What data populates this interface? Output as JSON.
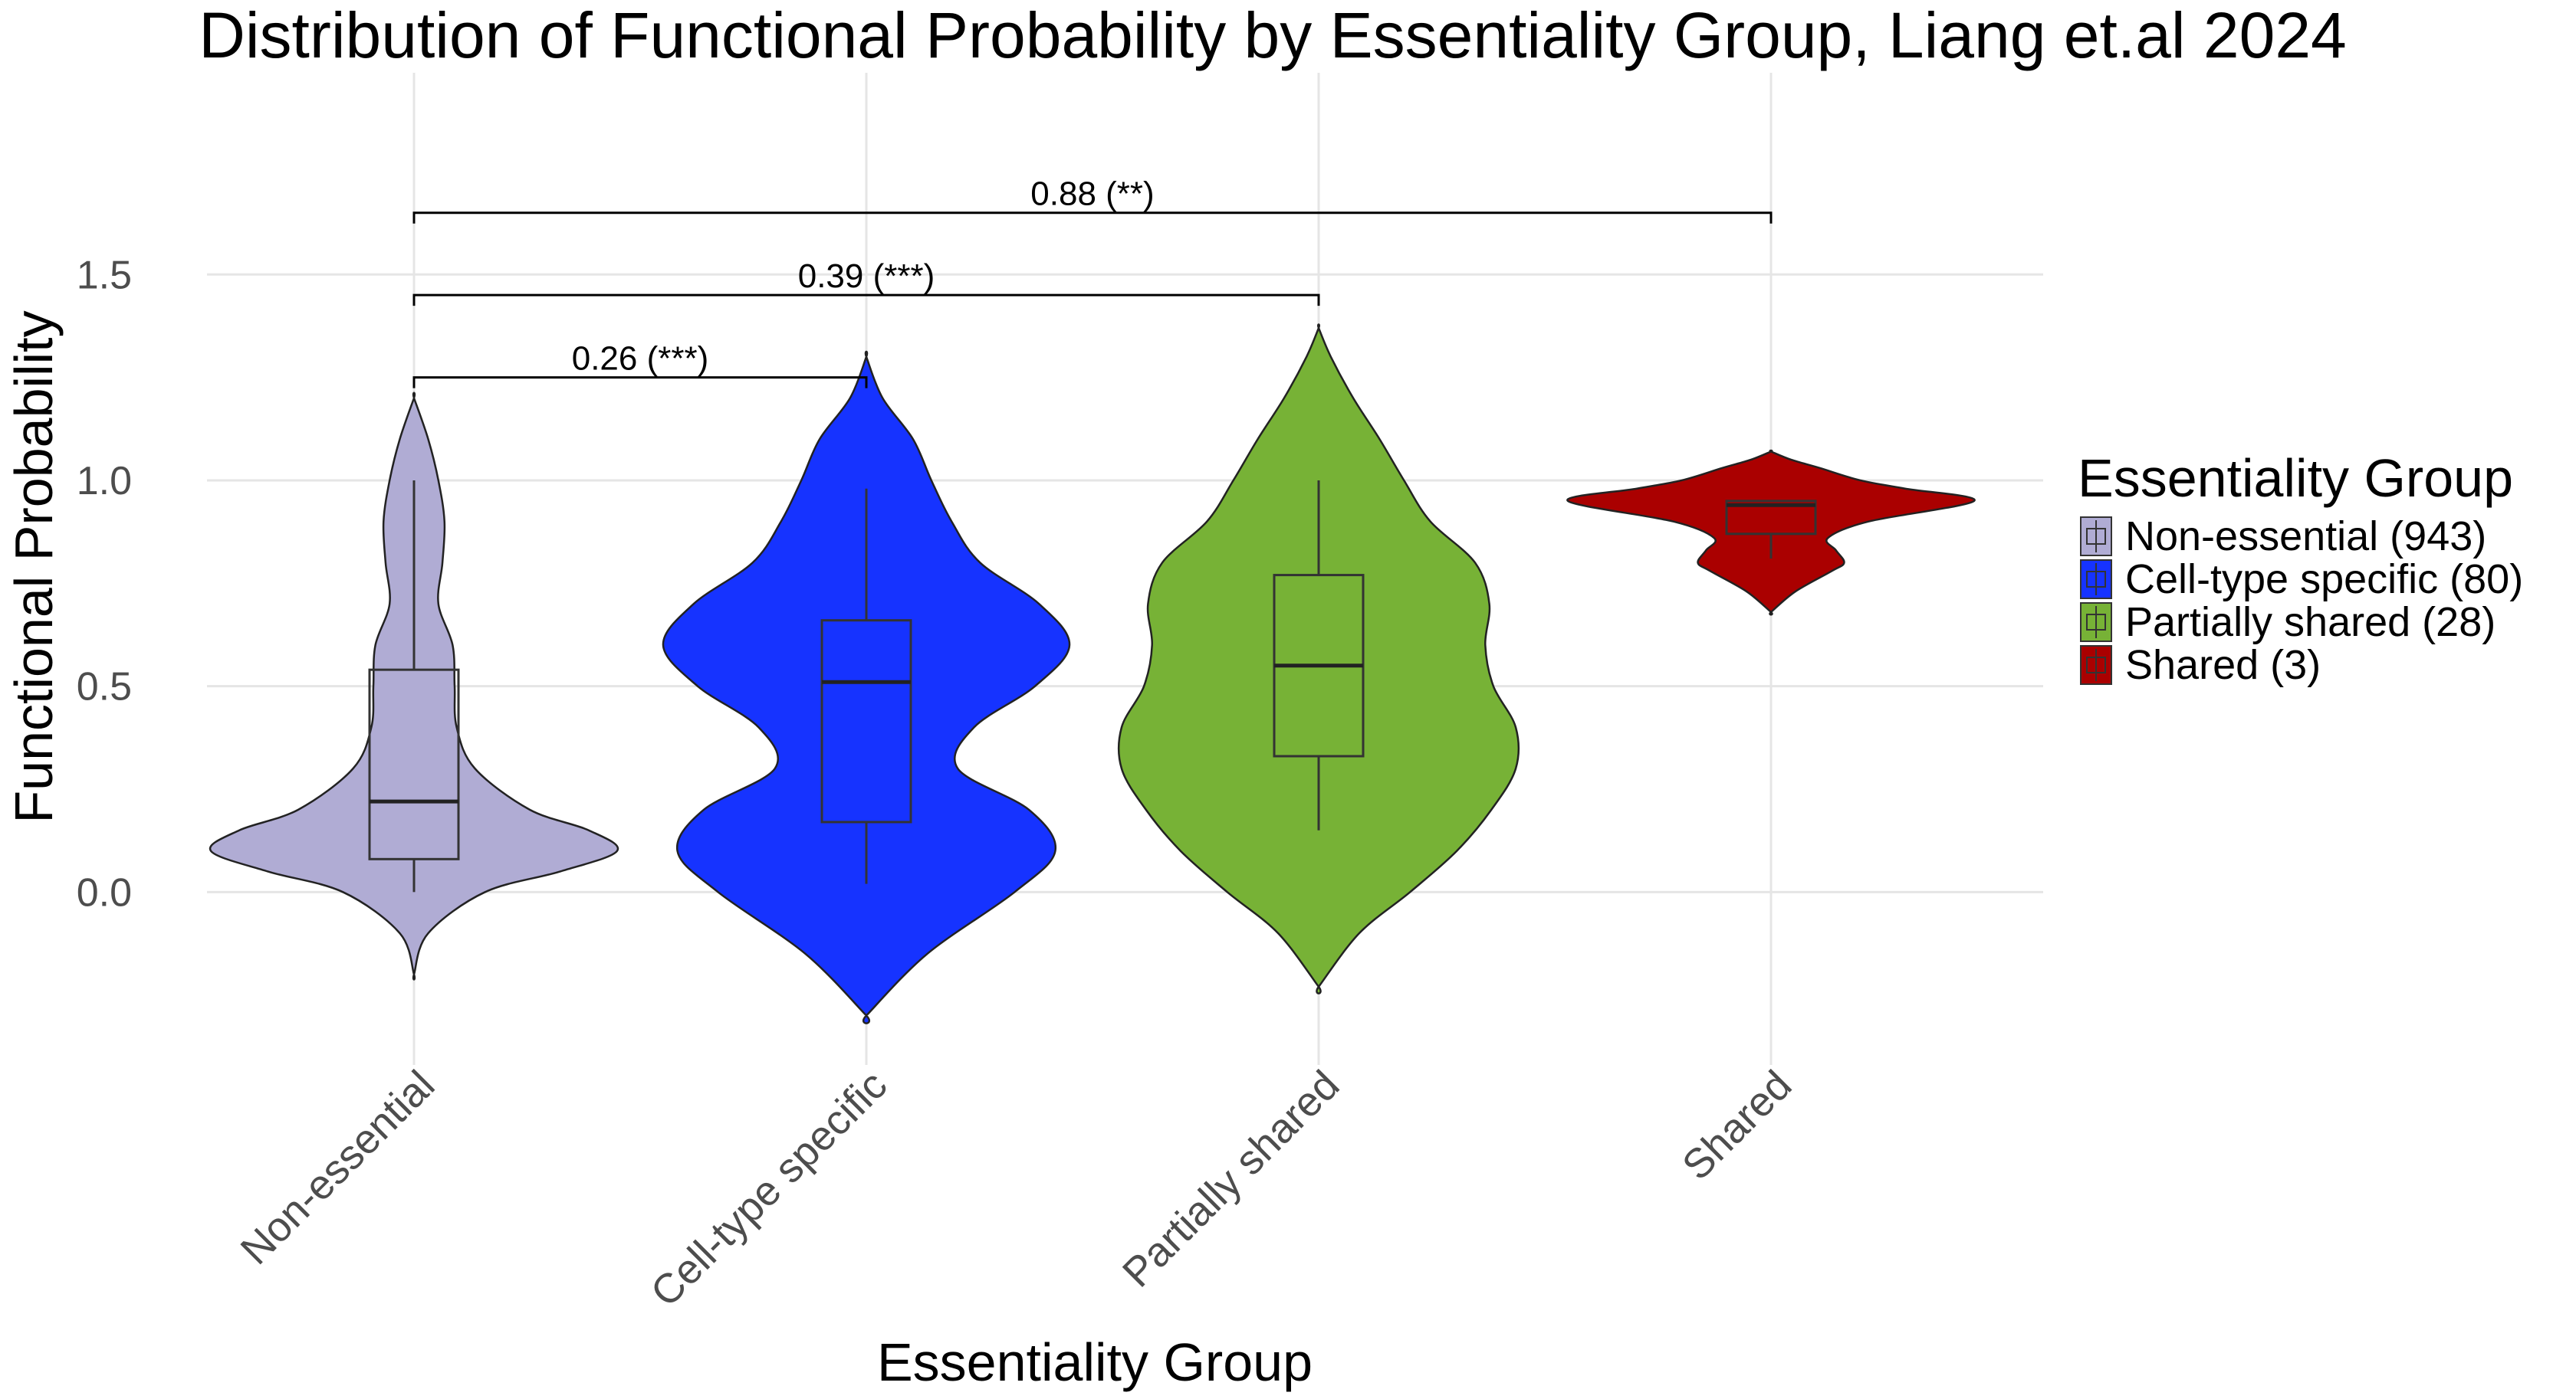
{
  "chart_data": {
    "type": "violin",
    "title": "Distribution of Functional Probability by Essentiality Group, Liang et.al 2024",
    "xlabel": "Essentiality Group",
    "ylabel": "Functional Probability",
    "ylim": [
      -0.42,
      1.99
    ],
    "yticks": [
      0.0,
      0.5,
      1.0,
      1.5
    ],
    "ytick_labels": [
      "0.0",
      "0.5",
      "1.0",
      "1.5"
    ],
    "grid": true,
    "legend": {
      "title": "Essentiality Group",
      "position": "right",
      "entries": [
        "Non-essential (943)",
        "Cell-type specific (80)",
        "Partially shared (28)",
        "Shared (3)"
      ]
    },
    "categories": [
      "Non-essential",
      "Cell-type specific",
      "Partially shared",
      "Shared"
    ],
    "series": [
      {
        "category": "Non-essential",
        "color": "#b0acd4",
        "count": 943,
        "box": {
          "min": 0.0,
          "q1": 0.08,
          "median": 0.22,
          "q3": 0.54,
          "max": 1.0
        },
        "violin_profile": [
          [
            -0.2,
            0.0
          ],
          [
            -0.1,
            0.07
          ],
          [
            0.0,
            0.35
          ],
          [
            0.05,
            0.72
          ],
          [
            0.1,
            1.0
          ],
          [
            0.15,
            0.86
          ],
          [
            0.2,
            0.57
          ],
          [
            0.3,
            0.3
          ],
          [
            0.4,
            0.21
          ],
          [
            0.5,
            0.2
          ],
          [
            0.6,
            0.19
          ],
          [
            0.7,
            0.12
          ],
          [
            0.8,
            0.14
          ],
          [
            0.9,
            0.15
          ],
          [
            1.0,
            0.12
          ],
          [
            1.1,
            0.07
          ],
          [
            1.2,
            0.0
          ]
        ]
      },
      {
        "category": "Cell-type specific",
        "color": "#1633ff",
        "count": 80,
        "box": {
          "min": 0.02,
          "q1": 0.17,
          "median": 0.51,
          "q3": 0.66,
          "max": 0.98
        },
        "violin_profile": [
          [
            -0.3,
            0.0
          ],
          [
            -0.15,
            0.3
          ],
          [
            0.0,
            0.73
          ],
          [
            0.1,
            0.93
          ],
          [
            0.2,
            0.8
          ],
          [
            0.3,
            0.45
          ],
          [
            0.4,
            0.53
          ],
          [
            0.5,
            0.83
          ],
          [
            0.6,
            1.0
          ],
          [
            0.7,
            0.85
          ],
          [
            0.8,
            0.56
          ],
          [
            0.9,
            0.42
          ],
          [
            1.0,
            0.32
          ],
          [
            1.1,
            0.23
          ],
          [
            1.2,
            0.08
          ],
          [
            1.3,
            0.0
          ]
        ]
      },
      {
        "category": "Partially shared",
        "color": "#77b236",
        "count": 28,
        "box": {
          "min": 0.15,
          "q1": 0.33,
          "median": 0.55,
          "q3": 0.77,
          "max": 1.0
        },
        "violin_profile": [
          [
            -0.23,
            0.0
          ],
          [
            -0.1,
            0.2
          ],
          [
            0.0,
            0.45
          ],
          [
            0.1,
            0.68
          ],
          [
            0.2,
            0.85
          ],
          [
            0.3,
            0.97
          ],
          [
            0.4,
            0.97
          ],
          [
            0.5,
            0.86
          ],
          [
            0.6,
            0.82
          ],
          [
            0.7,
            0.84
          ],
          [
            0.8,
            0.77
          ],
          [
            0.9,
            0.55
          ],
          [
            1.0,
            0.42
          ],
          [
            1.1,
            0.3
          ],
          [
            1.2,
            0.17
          ],
          [
            1.3,
            0.06
          ],
          [
            1.37,
            0.0
          ]
        ]
      },
      {
        "category": "Shared",
        "color": "#aa0000",
        "count": 3,
        "box": {
          "min": 0.81,
          "q1": 0.87,
          "median": 0.94,
          "q3": 0.95,
          "max": 0.95
        },
        "violin_profile": [
          [
            0.68,
            0.0
          ],
          [
            0.73,
            0.12
          ],
          [
            0.78,
            0.3
          ],
          [
            0.8,
            0.36
          ],
          [
            0.83,
            0.32
          ],
          [
            0.86,
            0.28
          ],
          [
            0.9,
            0.48
          ],
          [
            0.95,
            1.0
          ],
          [
            0.98,
            0.66
          ],
          [
            1.0,
            0.44
          ],
          [
            1.03,
            0.24
          ],
          [
            1.05,
            0.1
          ],
          [
            1.07,
            0.0
          ]
        ]
      }
    ],
    "comparisons": [
      {
        "groups": [
          "Non-essential",
          "Cell-type specific"
        ],
        "label": "0.26 (***)",
        "y": 1.25
      },
      {
        "groups": [
          "Non-essential",
          "Partially shared"
        ],
        "label": "0.39 (***)",
        "y": 1.45
      },
      {
        "groups": [
          "Non-essential",
          "Shared"
        ],
        "label": "0.88 (**)",
        "y": 1.65
      }
    ]
  }
}
